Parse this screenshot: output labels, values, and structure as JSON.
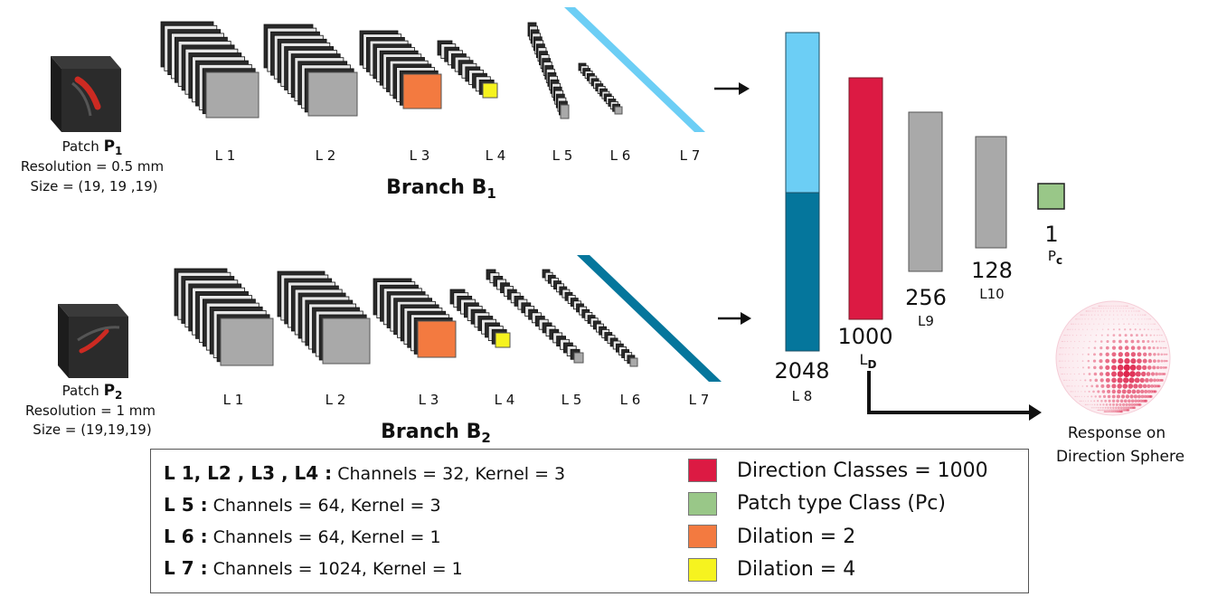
{
  "colors": {
    "gray": "#a9a9a9",
    "light_blue": "#6ccef5",
    "dark_blue": "#05769c",
    "red": "#dc1a43",
    "green": "#99c788",
    "orange": "#f37a40",
    "yellow": "#f6f31f"
  },
  "branch1": {
    "title_main": "Branch B",
    "title_sub": "1",
    "patch_prefix": "Patch ",
    "patch_bold": "P",
    "patch_sub": "1",
    "resolution": "Resolution = 0.5 mm",
    "size": "Size = (19, 19 ,19)",
    "layer_labels": [
      "L 1",
      "L 2",
      "L 3",
      "L 4",
      "L 5",
      "L 6",
      "L 7"
    ]
  },
  "branch2": {
    "title_main": "Branch B",
    "title_sub": "2",
    "patch_prefix": "Patch ",
    "patch_bold": "P",
    "patch_sub": "2",
    "resolution": "Resolution = 1 mm",
    "size": "Size = (19,19,19)",
    "layer_labels": [
      "L 1",
      "L 2",
      "L 3",
      "L 4",
      "L 5",
      "L 6",
      "L 7"
    ]
  },
  "fc_layers": {
    "l8_value": "2048",
    "l8_label": "L 8",
    "ld_value": "1000",
    "ld_label_main": "L",
    "ld_label_sub": "D",
    "l9_value": "256",
    "l9_label": "L9",
    "l10_value": "128",
    "l10_label": "L10",
    "pc_value": "1",
    "pc_label_main": "P",
    "pc_label_sub": "c"
  },
  "response": {
    "line1": "Response on",
    "line2": "Direction Sphere"
  },
  "legend": {
    "rows": [
      {
        "bold": "L 1, L2 , L3 , L4 :",
        "text": " Channels = 32, Kernel = 3"
      },
      {
        "bold": "L 5 :",
        "text": " Channels = 64, Kernel = 3"
      },
      {
        "bold": "L 6 :",
        "text": " Channels = 64, Kernel = 1"
      },
      {
        "bold": "L 7 :",
        "text": " Channels = 1024, Kernel = 1"
      }
    ],
    "swatches": [
      {
        "color": "#dc1a43",
        "label": "Direction Classes = 1000"
      },
      {
        "color": "#99c788",
        "label": "Patch type Class (Pc)"
      },
      {
        "color": "#f37a40",
        "label": "Dilation = 2"
      },
      {
        "color": "#f6f31f",
        "label": "Dilation = 4"
      }
    ]
  }
}
